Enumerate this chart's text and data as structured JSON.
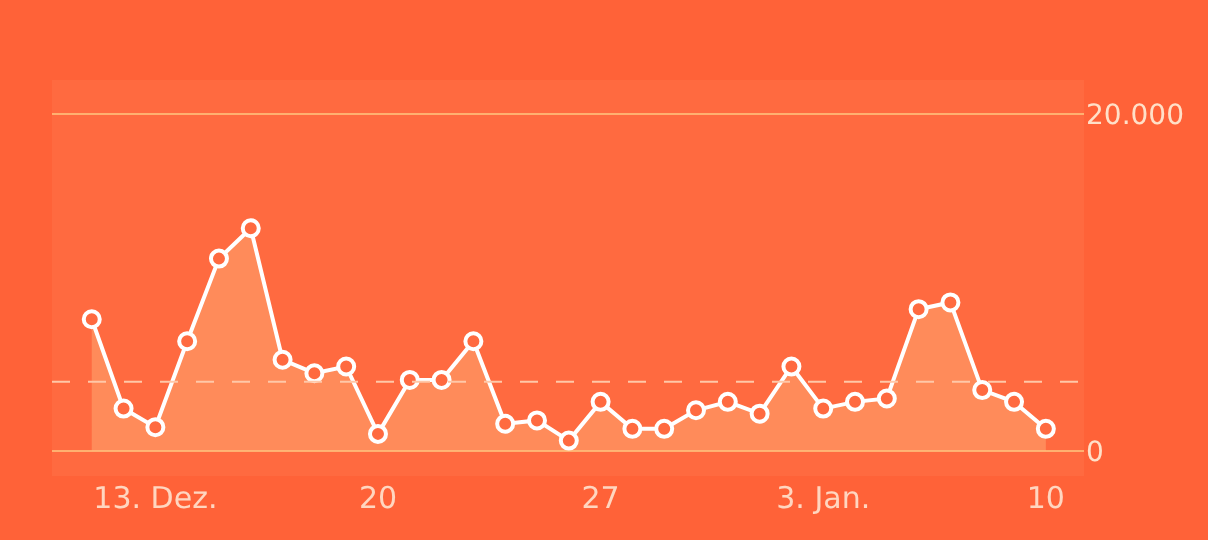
{
  "chart_data": {
    "type": "area",
    "categories": [
      null,
      null,
      "13. Dez.",
      null,
      null,
      null,
      null,
      null,
      null,
      "20",
      null,
      null,
      null,
      null,
      null,
      null,
      "27",
      null,
      null,
      null,
      null,
      null,
      null,
      "3. Jan.",
      null,
      null,
      null,
      null,
      null,
      null,
      "10"
    ],
    "series": [
      {
        "color": "#ffffff",
        "values": [
          7800,
          2500,
          1400,
          6500,
          11400,
          13200,
          5400,
          4600,
          5000,
          1000,
          4200,
          4200,
          6500,
          1600,
          1800,
          600,
          2900,
          1300,
          1300,
          2400,
          2900,
          2200,
          5000,
          2500,
          2900,
          3100,
          8400,
          8800,
          3600,
          2900,
          1300
        ]
      }
    ],
    "ylim": [
      -1500,
      22000
    ],
    "yticks": [
      {
        "value": 0,
        "label": "0"
      },
      {
        "value": 20000,
        "label": "20.000"
      }
    ],
    "ref_lines": [
      {
        "axis": "y",
        "value": 4100,
        "label": null,
        "color": "#ffc8a8",
        "line_style": "dashed"
      }
    ],
    "grid": "y",
    "marker": "circle",
    "line_style": "solid"
  }
}
